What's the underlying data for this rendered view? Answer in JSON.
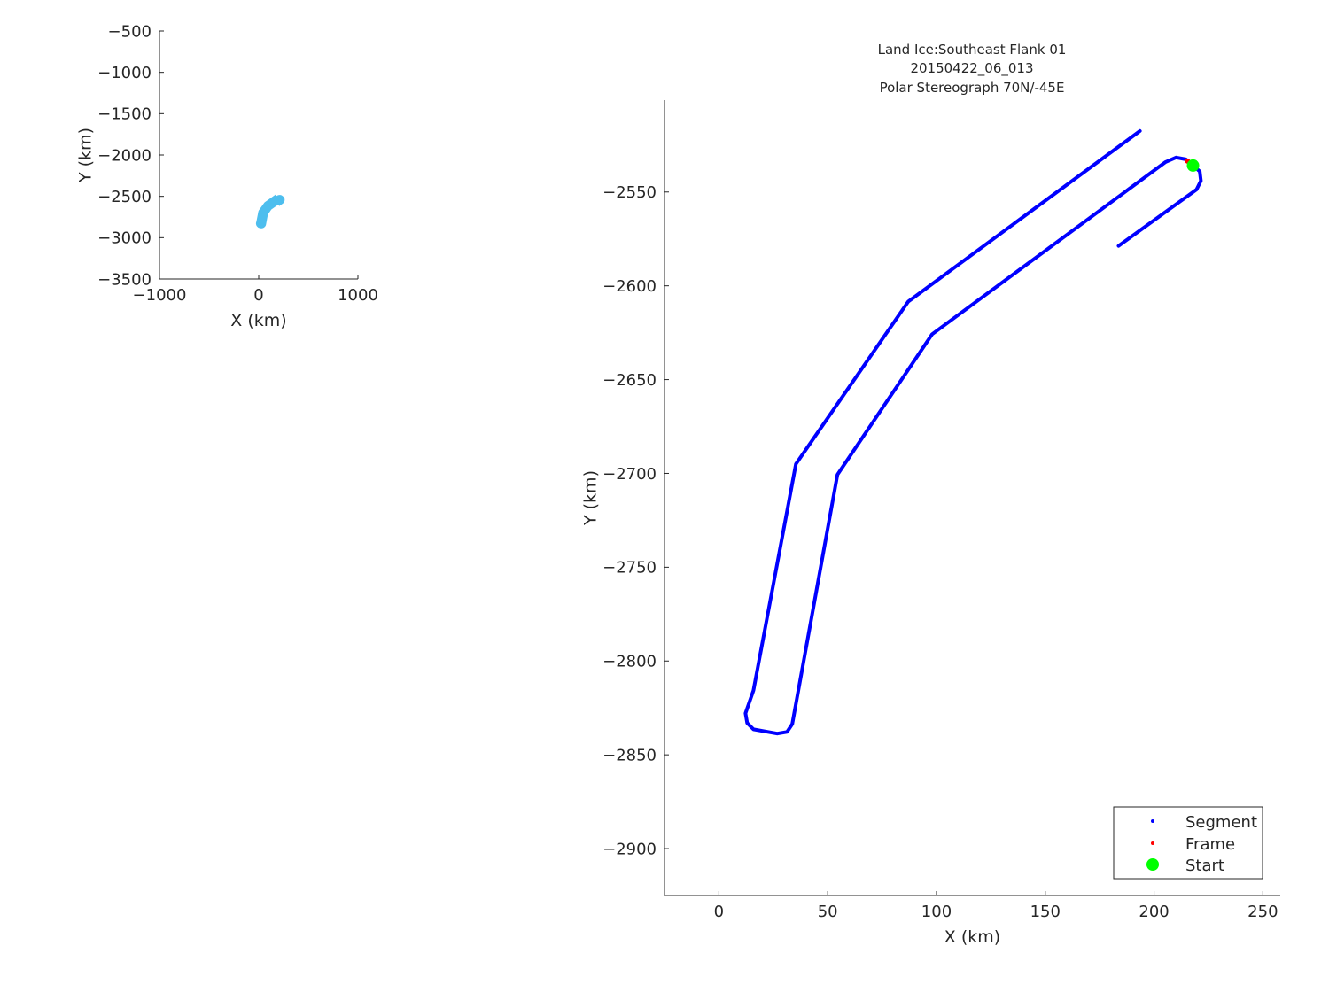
{
  "chart_data": [
    {
      "type": "line",
      "title": "",
      "xlabel": "X (km)",
      "ylabel": "Y (km)",
      "xlim": [
        -1000,
        1000
      ],
      "ylim": [
        -3500,
        -500
      ],
      "xticks": [
        "−1000",
        "0",
        "1000"
      ],
      "xtick_values": [
        -1000,
        0,
        1000
      ],
      "yticks": [
        "−500",
        "−1000",
        "−1500",
        "−2000",
        "−2500",
        "−3000",
        "−3500"
      ],
      "ytick_values": [
        -500,
        -1000,
        -1500,
        -2000,
        -2500,
        -3000,
        -3500
      ],
      "grid": false,
      "series": [
        {
          "color": "#4DBEEE",
          "description_ref": "overview-track"
        }
      ]
    },
    {
      "type": "line",
      "title": [
        "Land Ice:Southeast Flank 01",
        "20150422_06_013",
        "Polar Stereograph 70N/-45E"
      ],
      "xlabel": "X (km)",
      "ylabel": "Y (km)",
      "xlim": [
        -25,
        258
      ],
      "ylim": [
        -2925,
        -2501
      ],
      "xticks": [
        "0",
        "50",
        "100",
        "150",
        "200",
        "250"
      ],
      "xtick_values": [
        0,
        50,
        100,
        150,
        200,
        250
      ],
      "yticks": [
        "−2550",
        "−2600",
        "−2650",
        "−2700",
        "−2750",
        "−2800",
        "−2850",
        "−2900"
      ],
      "ytick_values": [
        -2550,
        -2600,
        -2650,
        -2700,
        -2750,
        -2800,
        -2850,
        -2900
      ],
      "grid": false,
      "legend_position": "bottom-right",
      "series": [
        {
          "name": "Segment",
          "color": "#0000FF",
          "x": [
            183.7,
            219.5,
            221.5,
            221.0,
            217.9,
            214.6,
            210.1,
            205.3,
            98.0,
            93.1,
            54.5,
            33.7,
            31.3,
            26.8,
            15.9,
            13.0,
            12.2,
            15.9,
            35.4,
            87.0,
            193.5
          ],
          "y": [
            -2578.7,
            -2548.7,
            -2544.0,
            -2539.0,
            -2535.9,
            -2532.6,
            -2531.6,
            -2534.0,
            -2625.8,
            -2634.3,
            -2700.7,
            -2833.6,
            -2837.8,
            -2838.7,
            -2836.4,
            -2833.0,
            -2827.9,
            -2815.7,
            -2695.0,
            -2608.4,
            -2517.5
          ]
        },
        {
          "name": "Frame",
          "color": "#FF0000",
          "x": [
            215.4
          ],
          "y": [
            -2533.5
          ]
        },
        {
          "name": "Start",
          "color": "#00FF00",
          "x": [
            217.9
          ],
          "y": [
            -2535.9
          ]
        }
      ]
    }
  ]
}
